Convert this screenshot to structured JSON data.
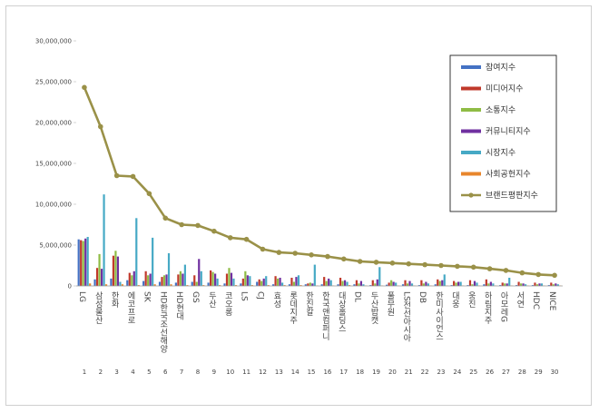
{
  "chart_data": {
    "type": "bar",
    "title": "",
    "xlabel": "",
    "ylabel": "",
    "ylim": [
      0,
      30000000
    ],
    "yticks": [
      0,
      5000000,
      10000000,
      15000000,
      20000000,
      25000000,
      30000000
    ],
    "ytick_labels": [
      "0",
      "5,000,000",
      "10,000,000",
      "15,000,000",
      "20,000,000",
      "25,000,000",
      "30,000,000"
    ],
    "grid": false,
    "legend_position": "top-right",
    "categories": [
      "LG",
      "삼성물산",
      "한화",
      "에코프로",
      "SK",
      "HD한국조선해양",
      "HD현대",
      "GS",
      "두산",
      "코오롱",
      "LS",
      "CJ",
      "효성",
      "롯데지주",
      "한진칼",
      "한국앤컴퍼니",
      "대상홀딩스",
      "DL",
      "두산밥캣",
      "풀무원",
      "LS전선아시아",
      "DB",
      "한미사이언스",
      "대웅",
      "웅진",
      "하림지주",
      "아모레G",
      "서연",
      "HDC",
      "NICE"
    ],
    "ranks": [
      "1",
      "2",
      "3",
      "4",
      "5",
      "6",
      "7",
      "8",
      "9",
      "10",
      "11",
      "12",
      "13",
      "14",
      "15",
      "16",
      "17",
      "18",
      "19",
      "20",
      "21",
      "22",
      "23",
      "24",
      "25",
      "26",
      "27",
      "28",
      "29",
      "30"
    ],
    "series": [
      {
        "name": "참여지수",
        "type": "bar",
        "color": "#4472c4",
        "values": [
          5700000,
          800000,
          900000,
          700000,
          600000,
          500000,
          400000,
          500000,
          400000,
          300000,
          300000,
          500000,
          200000,
          200000,
          200000,
          200000,
          200000,
          200000,
          100000,
          150000,
          200000,
          100000,
          200000,
          100000,
          100000,
          200000,
          100000,
          100000,
          100000,
          100000
        ]
      },
      {
        "name": "미디어지수",
        "type": "bar",
        "color": "#c0392b",
        "values": [
          5600000,
          2200000,
          3700000,
          1600000,
          1800000,
          1100000,
          1400000,
          1300000,
          1900000,
          1500000,
          900000,
          800000,
          1200000,
          1000000,
          300000,
          1100000,
          1000000,
          700000,
          700000,
          400000,
          700000,
          700000,
          800000,
          600000,
          700000,
          800000,
          400000,
          500000,
          400000,
          400000
        ]
      },
      {
        "name": "소통지수",
        "type": "bar",
        "color": "#8fbc45",
        "values": [
          5500000,
          3900000,
          4300000,
          1300000,
          1300000,
          1300000,
          1800000,
          500000,
          1700000,
          2200000,
          1800000,
          600000,
          900000,
          500000,
          400000,
          600000,
          600000,
          300000,
          300000,
          700000,
          300000,
          300000,
          600000,
          400000,
          200000,
          300000,
          300000,
          300000,
          200000,
          200000
        ]
      },
      {
        "name": "커뮤니티지수",
        "type": "bar",
        "color": "#7030a0",
        "values": [
          5800000,
          2100000,
          3600000,
          1800000,
          1500000,
          1400000,
          1500000,
          3300000,
          1500000,
          1600000,
          1300000,
          900000,
          1000000,
          1100000,
          300000,
          900000,
          700000,
          600000,
          800000,
          500000,
          600000,
          500000,
          700000,
          500000,
          600000,
          500000,
          300000,
          300000,
          300000,
          300000
        ]
      },
      {
        "name": "시장지수",
        "type": "bar",
        "color": "#46a9c5",
        "values": [
          6000000,
          11200000,
          500000,
          8300000,
          5900000,
          4000000,
          2600000,
          1800000,
          900000,
          900000,
          1200000,
          1200000,
          400000,
          1300000,
          2600000,
          700000,
          500000,
          200000,
          2300000,
          400000,
          300000,
          300000,
          1400000,
          500000,
          400000,
          300000,
          1000000,
          200000,
          300000,
          200000
        ]
      },
      {
        "name": "사회공헌지수",
        "type": "bar",
        "color": "#e8862c",
        "values": [
          300000,
          200000,
          200000,
          100000,
          200000,
          200000,
          100000,
          100000,
          100000,
          100000,
          100000,
          100000,
          100000,
          100000,
          50000,
          50000,
          100000,
          50000,
          50000,
          50000,
          50000,
          50000,
          50000,
          50000,
          50000,
          50000,
          50000,
          50000,
          50000,
          50000
        ]
      },
      {
        "name": "브랜드평판지수",
        "type": "line",
        "color": "#9a9148",
        "values": [
          24300000,
          19500000,
          13500000,
          13400000,
          11300000,
          8300000,
          7500000,
          7400000,
          6700000,
          5900000,
          5700000,
          4500000,
          4100000,
          4000000,
          3800000,
          3600000,
          3300000,
          3000000,
          2900000,
          2800000,
          2700000,
          2600000,
          2500000,
          2400000,
          2300000,
          2100000,
          1900000,
          1600000,
          1400000,
          1300000
        ]
      }
    ]
  }
}
